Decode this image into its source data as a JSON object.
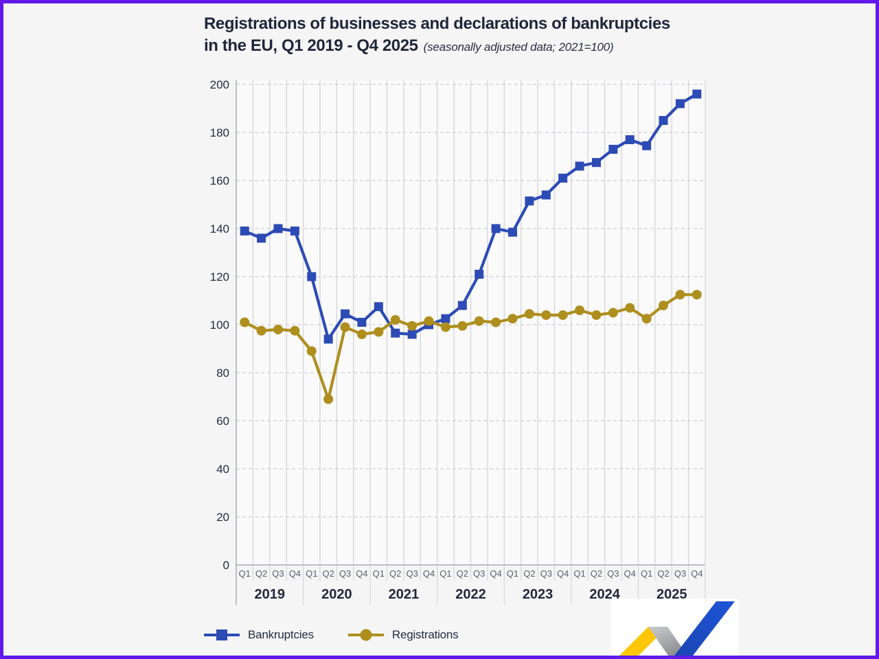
{
  "page": {
    "background": "#f5f5f6",
    "border_color": "#6219ea"
  },
  "chart": {
    "title_line1": "Registrations of businesses and declarations of bankruptcies",
    "title_line2": "in the EU, Q1 2019 - Q4 2025",
    "subtitle": "(seasonally adjusted data; 2021=100)"
  },
  "chart_data": {
    "type": "line",
    "title": "Registrations of businesses and declarations of bankruptcies in the EU, Q1 2019 - Q4 2025",
    "subtitle": "(seasonally adjusted data; 2021=100)",
    "x_years": [
      "2019",
      "2020",
      "2021",
      "2022",
      "2023",
      "2024",
      "2025"
    ],
    "quarters_per_year": [
      "Q1",
      "Q2",
      "Q3",
      "Q4"
    ],
    "y_ticks": [
      0,
      20,
      40,
      60,
      80,
      100,
      120,
      140,
      160,
      180,
      200
    ],
    "ylim": [
      0,
      200
    ],
    "grid": {
      "horizontal": "dashed",
      "vertical": "solid"
    },
    "legend_position": "bottom-left",
    "series": [
      {
        "name": "Bankruptcies",
        "marker": "square",
        "color": "#2c4bb5",
        "values": [
          139,
          136,
          140,
          139,
          120,
          94,
          104.5,
          101,
          107.5,
          96.5,
          96,
          100,
          102.5,
          108,
          121,
          140,
          138.5,
          151.5,
          154,
          161,
          166,
          167.5,
          173,
          177,
          174.5,
          185,
          192,
          196
        ]
      },
      {
        "name": "Registrations",
        "marker": "circle",
        "color": "#ae8e1d",
        "values": [
          101,
          97.5,
          98,
          97.5,
          89,
          69,
          99,
          96,
          97,
          102,
          99.5,
          101.5,
          99,
          99.5,
          101.5,
          101,
          102.5,
          104.5,
          104,
          104,
          106,
          104,
          105,
          107,
          102.5,
          108,
          112.5,
          112.5
        ]
      }
    ]
  },
  "legend": {
    "items": [
      {
        "label": "Bankruptcies"
      },
      {
        "label": "Registrations"
      }
    ]
  },
  "logo": {
    "name": "trend-ribbon-logo",
    "colors": {
      "yellow": "#fdc607",
      "gray_light": "#c9cacc",
      "gray_dark": "#8d8e92",
      "blue": "#1d52cc",
      "background": "#ffffff"
    }
  },
  "style": {
    "plot_bg": "#fafafb",
    "vgrid": "#d6d7da",
    "hgrid": "#c3c4c8",
    "axis": "#a9abb2",
    "tick_label": "#262b3e",
    "quarter_label": "#585e6c",
    "year_label": "#23283c"
  }
}
